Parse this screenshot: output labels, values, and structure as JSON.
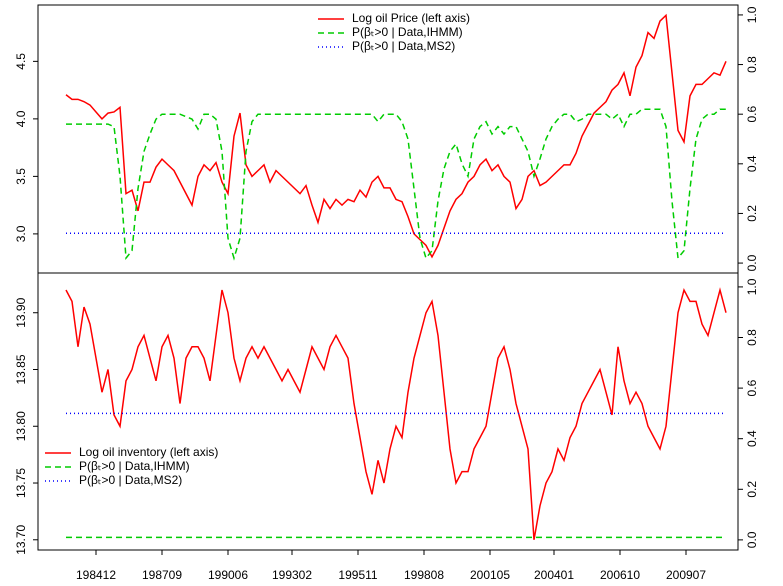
{
  "chart_data": [
    {
      "type": "line",
      "x": [
        "198309",
        "198312",
        "198403",
        "198406",
        "198409",
        "198412",
        "198503",
        "198506",
        "198509",
        "198512",
        "198603",
        "198606",
        "198609",
        "198612",
        "198703",
        "198706",
        "198709",
        "198712",
        "198803",
        "198806",
        "198809",
        "198812",
        "198903",
        "198906",
        "198909",
        "198912",
        "199003",
        "199006",
        "199009",
        "199012",
        "199103",
        "199106",
        "199109",
        "199112",
        "199203",
        "199206",
        "199209",
        "199212",
        "199303",
        "199306",
        "199309",
        "199312",
        "199403",
        "199406",
        "199409",
        "199412",
        "199503",
        "199506",
        "199509",
        "199512",
        "199603",
        "199606",
        "199609",
        "199612",
        "199703",
        "199706",
        "199709",
        "199712",
        "199803",
        "199806",
        "199809",
        "199812",
        "199903",
        "199906",
        "199909",
        "199912",
        "200003",
        "200006",
        "200009",
        "200012",
        "200103",
        "200106",
        "200109",
        "200112",
        "200203",
        "200206",
        "200209",
        "200212",
        "200303",
        "200306",
        "200309",
        "200312",
        "200403",
        "200406",
        "200409",
        "200412",
        "200503",
        "200506",
        "200509",
        "200512",
        "200603",
        "200606",
        "200609",
        "200612",
        "200703",
        "200706",
        "200709",
        "200712",
        "200803",
        "200806",
        "200809",
        "200812",
        "200903",
        "200906",
        "200909",
        "200912",
        "201003",
        "201006",
        "201009",
        "201012",
        "201103"
      ],
      "xlim": [
        "198309",
        "201103"
      ],
      "ylim": [
        2.66,
        4.99
      ],
      "yticks": [
        {
          "value": 3,
          "label": "3.0"
        },
        3.5,
        {
          "value": 4,
          "label": "4.0"
        },
        4.5
      ],
      "y2lim": [
        -0.04,
        1.04
      ],
      "y2ticks": [
        {
          "value": 0,
          "label": "0.0"
        },
        0.2,
        0.4,
        0.6,
        0.8,
        {
          "value": 1,
          "label": "1.0"
        }
      ],
      "legend": "top",
      "series": [
        {
          "name": "Log oil Price (left axis)",
          "color": "#ff0000",
          "linestyle": "solid",
          "values": [
            4.21,
            4.17,
            4.17,
            4.15,
            4.12,
            4.06,
            4.0,
            4.05,
            4.06,
            4.1,
            3.35,
            3.38,
            3.2,
            3.45,
            3.45,
            3.58,
            3.65,
            3.6,
            3.55,
            3.45,
            3.35,
            3.25,
            3.5,
            3.6,
            3.55,
            3.62,
            3.45,
            3.35,
            3.85,
            4.05,
            3.6,
            3.5,
            3.55,
            3.6,
            3.45,
            3.55,
            3.5,
            3.45,
            3.4,
            3.35,
            3.42,
            3.25,
            3.1,
            3.3,
            3.22,
            3.3,
            3.25,
            3.3,
            3.28,
            3.38,
            3.32,
            3.45,
            3.5,
            3.4,
            3.4,
            3.3,
            3.28,
            3.15,
            3.0,
            2.95,
            2.9,
            2.8,
            2.9,
            3.05,
            3.2,
            3.3,
            3.35,
            3.45,
            3.5,
            3.6,
            3.65,
            3.55,
            3.6,
            3.5,
            3.45,
            3.22,
            3.3,
            3.5,
            3.55,
            3.42,
            3.45,
            3.5,
            3.55,
            3.6,
            3.6,
            3.7,
            3.85,
            3.95,
            4.05,
            4.1,
            4.15,
            4.25,
            4.3,
            4.4,
            4.2,
            4.45,
            4.55,
            4.75,
            4.7,
            4.85,
            4.9,
            4.4,
            3.9,
            3.8,
            4.2,
            4.3,
            4.3,
            4.35,
            4.4,
            4.38,
            4.5
          ]
        },
        {
          "name": "P(βₜ>0 | Data,IHMM)",
          "color": "#00cc00",
          "linestyle": "dashed",
          "axis": "y2",
          "values": [
            0.56,
            0.56,
            0.56,
            0.56,
            0.56,
            0.56,
            0.56,
            0.56,
            0.55,
            0.35,
            0.02,
            0.05,
            0.3,
            0.45,
            0.52,
            0.58,
            0.6,
            0.6,
            0.6,
            0.6,
            0.59,
            0.58,
            0.54,
            0.6,
            0.6,
            0.58,
            0.45,
            0.1,
            0.02,
            0.1,
            0.45,
            0.57,
            0.6,
            0.6,
            0.6,
            0.6,
            0.6,
            0.6,
            0.6,
            0.6,
            0.6,
            0.6,
            0.6,
            0.6,
            0.6,
            0.6,
            0.6,
            0.6,
            0.6,
            0.6,
            0.6,
            0.6,
            0.57,
            0.6,
            0.6,
            0.6,
            0.57,
            0.5,
            0.3,
            0.1,
            0.02,
            0.05,
            0.25,
            0.38,
            0.45,
            0.48,
            0.4,
            0.35,
            0.5,
            0.55,
            0.57,
            0.52,
            0.55,
            0.52,
            0.55,
            0.55,
            0.5,
            0.45,
            0.35,
            0.42,
            0.5,
            0.55,
            0.58,
            0.6,
            0.6,
            0.57,
            0.58,
            0.6,
            0.6,
            0.6,
            0.6,
            0.58,
            0.6,
            0.55,
            0.6,
            0.6,
            0.62,
            0.62,
            0.62,
            0.62,
            0.55,
            0.25,
            0.02,
            0.05,
            0.3,
            0.5,
            0.58,
            0.6,
            0.6,
            0.62,
            0.62
          ]
        },
        {
          "name": "P(βₜ>0 | Data,MS2)",
          "color": "#0000ff",
          "linestyle": "dotted",
          "axis": "y2",
          "values": [
            0.12,
            0.12,
            0.12,
            0.12,
            0.12,
            0.12,
            0.12,
            0.12,
            0.12,
            0.12,
            0.12,
            0.12,
            0.12,
            0.12,
            0.12,
            0.12,
            0.12,
            0.12,
            0.12,
            0.12,
            0.12,
            0.12,
            0.12,
            0.12,
            0.12,
            0.12,
            0.12,
            0.12,
            0.12,
            0.12,
            0.12,
            0.12,
            0.12,
            0.12,
            0.12,
            0.12,
            0.12,
            0.12,
            0.12,
            0.12,
            0.12,
            0.12,
            0.12,
            0.12,
            0.12,
            0.12,
            0.12,
            0.12,
            0.12,
            0.12,
            0.12,
            0.12,
            0.12,
            0.12,
            0.12,
            0.12,
            0.12,
            0.12,
            0.12,
            0.12,
            0.12,
            0.12,
            0.12,
            0.12,
            0.12,
            0.12,
            0.12,
            0.12,
            0.12,
            0.12,
            0.12,
            0.12,
            0.12,
            0.12,
            0.12,
            0.12,
            0.12,
            0.12,
            0.12,
            0.12,
            0.12,
            0.12,
            0.12,
            0.12,
            0.12,
            0.12,
            0.12,
            0.12,
            0.12,
            0.12,
            0.12,
            0.12,
            0.12,
            0.12,
            0.12,
            0.12,
            0.12,
            0.12,
            0.12,
            0.12,
            0.12,
            0.12,
            0.12,
            0.12,
            0.12,
            0.12,
            0.12,
            0.12,
            0.12,
            0.12,
            0.12
          ]
        }
      ]
    },
    {
      "type": "line",
      "x": [
        "198309",
        "198312",
        "198403",
        "198406",
        "198409",
        "198412",
        "198503",
        "198506",
        "198509",
        "198512",
        "198603",
        "198606",
        "198609",
        "198612",
        "198703",
        "198706",
        "198709",
        "198712",
        "198803",
        "198806",
        "198809",
        "198812",
        "198903",
        "198906",
        "198909",
        "198912",
        "199003",
        "199006",
        "199009",
        "199012",
        "199103",
        "199106",
        "199109",
        "199112",
        "199203",
        "199206",
        "199209",
        "199212",
        "199303",
        "199306",
        "199309",
        "199312",
        "199403",
        "199406",
        "199409",
        "199412",
        "199503",
        "199506",
        "199509",
        "199512",
        "199603",
        "199606",
        "199609",
        "199612",
        "199703",
        "199706",
        "199709",
        "199712",
        "199803",
        "199806",
        "199809",
        "199812",
        "199903",
        "199906",
        "199909",
        "199912",
        "200003",
        "200006",
        "200009",
        "200012",
        "200103",
        "200106",
        "200109",
        "200112",
        "200203",
        "200206",
        "200209",
        "200212",
        "200303",
        "200306",
        "200309",
        "200312",
        "200403",
        "200406",
        "200409",
        "200412",
        "200503",
        "200506",
        "200509",
        "200512",
        "200603",
        "200606",
        "200609",
        "200612",
        "200703",
        "200706",
        "200709",
        "200712",
        "200803",
        "200806",
        "200809",
        "200812",
        "200903",
        "200906",
        "200909",
        "200912",
        "201003",
        "201006",
        "201009",
        "201012",
        "201103"
      ],
      "xlim": [
        "198309",
        "201103"
      ],
      "xticks": [
        "198412",
        "198709",
        "199006",
        "199302",
        "199511",
        "199808",
        "200105",
        "200401",
        "200610",
        "200907"
      ],
      "ylim": [
        13.691,
        13.935
      ],
      "yticks": [
        {
          "value": 13.7,
          "label": "13.70"
        },
        13.75,
        {
          "value": 13.8,
          "label": "13.80"
        },
        13.85,
        {
          "value": 13.9,
          "label": "13.90"
        }
      ],
      "y2lim": [
        -0.04,
        1.055
      ],
      "y2ticks": [
        {
          "value": 0,
          "label": "0.0"
        },
        0.2,
        0.4,
        0.6,
        0.8,
        {
          "value": 1,
          "label": "1.0"
        }
      ],
      "legend": "bottom-left",
      "series": [
        {
          "name": "Log oil inventory (left axis)",
          "color": "#ff0000",
          "linestyle": "solid",
          "values": [
            13.92,
            13.91,
            13.87,
            13.905,
            13.89,
            13.86,
            13.83,
            13.85,
            13.81,
            13.8,
            13.84,
            13.85,
            13.87,
            13.88,
            13.86,
            13.84,
            13.87,
            13.88,
            13.86,
            13.82,
            13.86,
            13.87,
            13.87,
            13.86,
            13.84,
            13.88,
            13.92,
            13.9,
            13.86,
            13.84,
            13.86,
            13.87,
            13.86,
            13.87,
            13.86,
            13.85,
            13.84,
            13.85,
            13.84,
            13.83,
            13.85,
            13.87,
            13.86,
            13.85,
            13.87,
            13.88,
            13.87,
            13.86,
            13.82,
            13.79,
            13.76,
            13.74,
            13.77,
            13.75,
            13.78,
            13.8,
            13.79,
            13.83,
            13.86,
            13.88,
            13.9,
            13.91,
            13.88,
            13.83,
            13.78,
            13.75,
            13.76,
            13.76,
            13.78,
            13.79,
            13.8,
            13.83,
            13.86,
            13.87,
            13.85,
            13.82,
            13.8,
            13.78,
            13.7,
            13.73,
            13.75,
            13.76,
            13.78,
            13.77,
            13.79,
            13.8,
            13.82,
            13.83,
            13.84,
            13.85,
            13.83,
            13.81,
            13.87,
            13.84,
            13.82,
            13.83,
            13.82,
            13.8,
            13.79,
            13.78,
            13.8,
            13.85,
            13.9,
            13.92,
            13.91,
            13.91,
            13.89,
            13.88,
            13.9,
            13.92,
            13.9
          ]
        },
        {
          "name": "P(βₜ>0 | Data,IHMM)",
          "color": "#00cc00",
          "linestyle": "dashed",
          "axis": "y2",
          "values": [
            0.01,
            0.01,
            0.01,
            0.01,
            0.01,
            0.01,
            0.01,
            0.01,
            0.01,
            0.01,
            0.01,
            0.01,
            0.01,
            0.01,
            0.01,
            0.01,
            0.01,
            0.01,
            0.01,
            0.01,
            0.01,
            0.01,
            0.01,
            0.01,
            0.01,
            0.01,
            0.01,
            0.01,
            0.01,
            0.01,
            0.01,
            0.01,
            0.01,
            0.01,
            0.01,
            0.01,
            0.01,
            0.01,
            0.01,
            0.01,
            0.01,
            0.01,
            0.01,
            0.01,
            0.01,
            0.01,
            0.01,
            0.01,
            0.01,
            0.01,
            0.01,
            0.01,
            0.01,
            0.01,
            0.01,
            0.01,
            0.01,
            0.01,
            0.01,
            0.01,
            0.01,
            0.01,
            0.01,
            0.01,
            0.01,
            0.01,
            0.01,
            0.01,
            0.01,
            0.01,
            0.01,
            0.01,
            0.01,
            0.01,
            0.01,
            0.01,
            0.01,
            0.01,
            0.01,
            0.01,
            0.01,
            0.01,
            0.01,
            0.01,
            0.01,
            0.01,
            0.01,
            0.01,
            0.01,
            0.01,
            0.01,
            0.01,
            0.01,
            0.01,
            0.01,
            0.01,
            0.01,
            0.01,
            0.01,
            0.01,
            0.01,
            0.01,
            0.01,
            0.01,
            0.01,
            0.01,
            0.01,
            0.01,
            0.01,
            0.01,
            0.01
          ]
        },
        {
          "name": "P(βₜ>0 | Data,MS2)",
          "color": "#0000ff",
          "linestyle": "dotted",
          "axis": "y2",
          "values": [
            0.5,
            0.5,
            0.5,
            0.5,
            0.5,
            0.5,
            0.5,
            0.5,
            0.5,
            0.5,
            0.5,
            0.5,
            0.5,
            0.5,
            0.5,
            0.5,
            0.5,
            0.5,
            0.5,
            0.5,
            0.5,
            0.5,
            0.5,
            0.5,
            0.5,
            0.5,
            0.5,
            0.5,
            0.5,
            0.5,
            0.5,
            0.5,
            0.5,
            0.5,
            0.5,
            0.5,
            0.5,
            0.5,
            0.5,
            0.5,
            0.5,
            0.5,
            0.5,
            0.5,
            0.5,
            0.5,
            0.5,
            0.5,
            0.5,
            0.5,
            0.5,
            0.5,
            0.5,
            0.5,
            0.5,
            0.5,
            0.5,
            0.5,
            0.5,
            0.5,
            0.5,
            0.5,
            0.5,
            0.5,
            0.5,
            0.5,
            0.5,
            0.5,
            0.5,
            0.5,
            0.5,
            0.5,
            0.5,
            0.5,
            0.5,
            0.5,
            0.5,
            0.5,
            0.5,
            0.5,
            0.5,
            0.5,
            0.5,
            0.5,
            0.5,
            0.5,
            0.5,
            0.5,
            0.5,
            0.5,
            0.5,
            0.5,
            0.5,
            0.5,
            0.5,
            0.5,
            0.5,
            0.5,
            0.5,
            0.5,
            0.5,
            0.5,
            0.5,
            0.5,
            0.5,
            0.5,
            0.5,
            0.5,
            0.5,
            0.5,
            0.5
          ]
        }
      ]
    }
  ]
}
